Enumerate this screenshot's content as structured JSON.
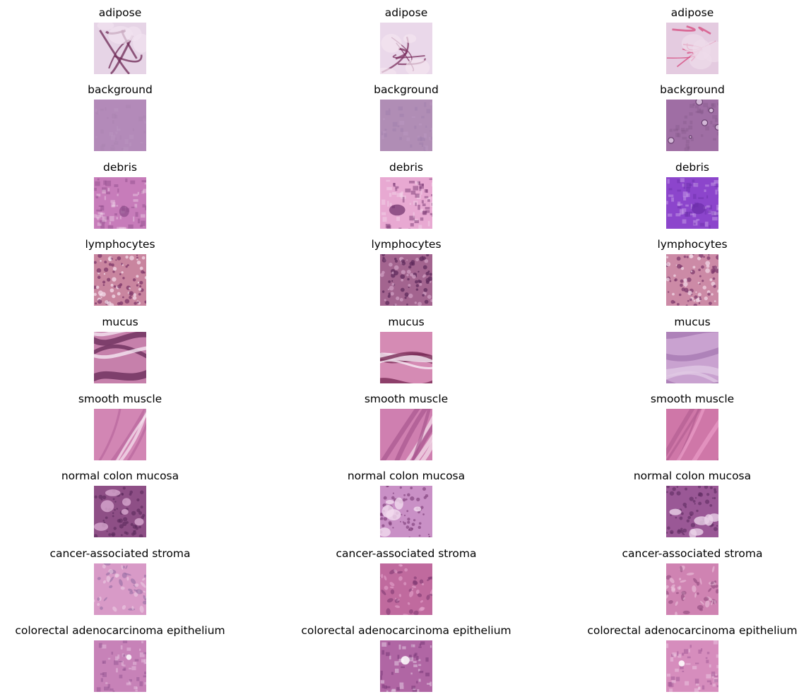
{
  "figure": {
    "rows": [
      {
        "label": "adipose",
        "tiles": [
          {
            "base": "#e6d4e6",
            "accent": "#6e2a55",
            "light": "#f1e3ef",
            "texture": "fat"
          },
          {
            "base": "#ead8ea",
            "accent": "#7a2f5e",
            "light": "#f3e6f0",
            "texture": "fat"
          },
          {
            "base": "#e4cbe0",
            "accent": "#d6487d",
            "light": "#eedcea",
            "texture": "fat"
          }
        ]
      },
      {
        "label": "background",
        "tiles": [
          {
            "base": "#b38ab9",
            "accent": "#a880ae",
            "light": "#bd97c3",
            "texture": "flat"
          },
          {
            "base": "#b08db5",
            "accent": "#9c7aa8",
            "light": "#c09ec6",
            "texture": "flat"
          },
          {
            "base": "#9f6ea4",
            "accent": "#6a4070",
            "light": "#d2b7d6",
            "texture": "bubbles"
          }
        ]
      },
      {
        "label": "debris",
        "tiles": [
          {
            "base": "#c77cba",
            "accent": "#8d4b8a",
            "light": "#eed0e6",
            "texture": "debris"
          },
          {
            "base": "#e8a9d2",
            "accent": "#6e2f6a",
            "light": "#f4d7ea",
            "texture": "debris"
          },
          {
            "base": "#8c45cc",
            "accent": "#6b2ea8",
            "light": "#cfa8ec",
            "texture": "debris"
          }
        ]
      },
      {
        "label": "lymphocytes",
        "tiles": [
          {
            "base": "#c9859f",
            "accent": "#7c3668",
            "light": "#f3dcea",
            "texture": "dots"
          },
          {
            "base": "#a3648f",
            "accent": "#5f2b5c",
            "light": "#cf9ec2",
            "texture": "dots"
          },
          {
            "base": "#cc8aa6",
            "accent": "#7f3a6c",
            "light": "#f0d6e4",
            "texture": "dots"
          }
        ]
      },
      {
        "label": "mucus",
        "tiles": [
          {
            "base": "#c680ab",
            "accent": "#6b2e5c",
            "light": "#f5e6f2",
            "texture": "waves"
          },
          {
            "base": "#d58bb4",
            "accent": "#7a2c57",
            "light": "#f7eef6",
            "texture": "waves"
          },
          {
            "base": "#c9a2d0",
            "accent": "#a87ab3",
            "light": "#e0c8e4",
            "texture": "waves"
          }
        ]
      },
      {
        "label": "smooth muscle",
        "tiles": [
          {
            "base": "#d286b4",
            "accent": "#b8679c",
            "light": "#f6e6f1",
            "texture": "fibers"
          },
          {
            "base": "#cf7fb0",
            "accent": "#a85790",
            "light": "#f5e3ee",
            "texture": "fibers"
          },
          {
            "base": "#cf77a8",
            "accent": "#b45f93",
            "light": "#ea9dc8",
            "texture": "fibers"
          }
        ]
      },
      {
        "label": "normal colon mucosa",
        "tiles": [
          {
            "base": "#8e4f86",
            "accent": "#5a2a5c",
            "light": "#d8a8d0",
            "texture": "glands"
          },
          {
            "base": "#c990c6",
            "accent": "#7a3a74",
            "light": "#f2dcef",
            "texture": "glands"
          },
          {
            "base": "#9a5896",
            "accent": "#5f2c60",
            "light": "#ead2e8",
            "texture": "glands"
          }
        ]
      },
      {
        "label": "cancer-associated stroma",
        "tiles": [
          {
            "base": "#d89ac7",
            "accent": "#8f6aa0",
            "light": "#eed2e6",
            "texture": "stroma"
          },
          {
            "base": "#c06a9e",
            "accent": "#7a3570",
            "light": "#e6a8cf",
            "texture": "stroma"
          },
          {
            "base": "#cf83b2",
            "accent": "#8a4378",
            "light": "#eec9e0",
            "texture": "stroma"
          }
        ]
      },
      {
        "label": "colorectal adenocarcinoma epithelium",
        "tiles": [
          {
            "base": "#c782b8",
            "accent": "#8e4f8f",
            "light": "#ecc9e4",
            "texture": "epithelium"
          },
          {
            "base": "#b066a4",
            "accent": "#6e2f6e",
            "light": "#f0e0ef",
            "texture": "epithelium"
          },
          {
            "base": "#d68dbd",
            "accent": "#9a5390",
            "light": "#efd0e6",
            "texture": "epithelium"
          }
        ]
      }
    ]
  }
}
